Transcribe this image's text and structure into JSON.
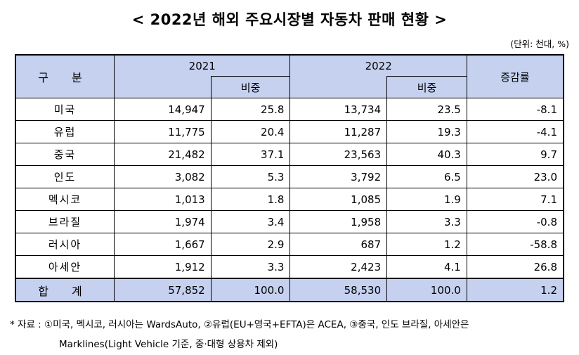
{
  "title": "< 2022년 해외 주요시장별 자동차 판매 현황 >",
  "unit": "(단위: 천대, %)",
  "table": {
    "header": {
      "category": "구 분",
      "y2021": "2021",
      "y2022": "2022",
      "share": "비중",
      "growth": "증감률"
    },
    "rows": [
      {
        "name": "미국",
        "v2021": "14,947",
        "s2021": "25.8",
        "v2022": "13,734",
        "s2022": "23.5",
        "growth": "-8.1"
      },
      {
        "name": "유럽",
        "v2021": "11,775",
        "s2021": "20.4",
        "v2022": "11,287",
        "s2022": "19.3",
        "growth": "-4.1"
      },
      {
        "name": "중국",
        "v2021": "21,482",
        "s2021": "37.1",
        "v2022": "23,563",
        "s2022": "40.3",
        "growth": "9.7"
      },
      {
        "name": "인도",
        "v2021": "3,082",
        "s2021": "5.3",
        "v2022": "3,792",
        "s2022": "6.5",
        "growth": "23.0"
      },
      {
        "name": "멕시코",
        "v2021": "1,013",
        "s2021": "1.8",
        "v2022": "1,085",
        "s2022": "1.9",
        "growth": "7.1"
      },
      {
        "name": "브라질",
        "v2021": "1,974",
        "s2021": "3.4",
        "v2022": "1,958",
        "s2022": "3.3",
        "growth": "-0.8"
      },
      {
        "name": "러시아",
        "v2021": "1,667",
        "s2021": "2.9",
        "v2022": "687",
        "s2022": "1.2",
        "growth": "-58.8"
      },
      {
        "name": "아세안",
        "v2021": "1,912",
        "s2021": "3.3",
        "v2022": "2,423",
        "s2022": "4.1",
        "growth": "26.8"
      }
    ],
    "total": {
      "name": "합 계",
      "v2021": "57,852",
      "s2021": "100.0",
      "v2022": "58,530",
      "s2022": "100.0",
      "growth": "1.2"
    }
  },
  "note": {
    "line1": "* 자료 : ①미국, 멕시코, 러시아는 WardsAuto, ②유럽(EU+영국+EFTA)은 ACEA, ③중국, 인도 브라질, 아세안은",
    "line2": "Marklines(Light Vehicle 기준, 중·대형 상용차 제외)"
  },
  "colors": {
    "header_bg": "#c5d1ef"
  }
}
